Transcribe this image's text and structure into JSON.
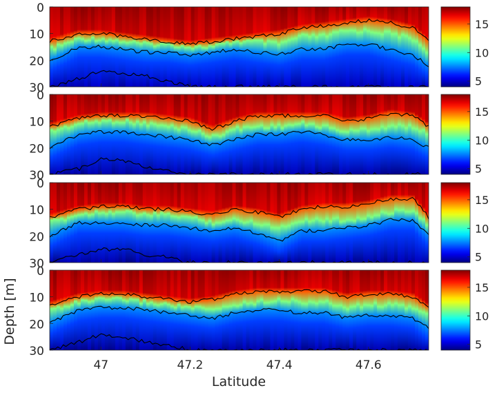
{
  "chart_data": {
    "type": "heatmap",
    "xlabel": "Latitude",
    "ylabel": "Depth [m]",
    "xlim": [
      46.885,
      47.735
    ],
    "ylim": [
      0,
      30
    ],
    "y_reversed": true,
    "x_ticks": [
      47,
      47.2,
      47.4,
      47.6
    ],
    "x_tick_labels": [
      "47",
      "47.2",
      "47.4",
      "47.6"
    ],
    "y_ticks": [
      0,
      10,
      20,
      30
    ],
    "y_tick_labels": [
      "0",
      "10",
      "20",
      "30"
    ],
    "colormap": "jet",
    "clim": [
      4,
      18
    ],
    "colorbar_ticks": [
      5,
      10,
      15
    ],
    "colorbar_tick_labels": [
      "5",
      "10",
      "15"
    ],
    "contour_color": "#000000",
    "latitude_nodes": [
      46.885,
      46.95,
      47.0,
      47.05,
      47.1,
      47.15,
      47.2,
      47.25,
      47.3,
      47.35,
      47.4,
      47.45,
      47.5,
      47.55,
      47.6,
      47.65,
      47.7,
      47.735
    ],
    "panels": [
      {
        "panel": 1,
        "surface_temperature": 17.5,
        "deep_temperature": 4.8,
        "thermocline_depth": [
          16,
          12,
          12,
          13,
          14,
          14,
          15,
          15,
          13,
          13,
          14,
          11,
          11,
          9,
          9,
          10,
          12,
          17
        ],
        "contour_upper_depth": [
          13,
          10,
          10,
          11,
          12,
          13,
          14,
          13,
          12,
          11,
          10,
          8,
          7,
          6,
          5,
          6,
          8,
          13
        ],
        "contour_lower_depth": [
          20,
          15,
          15,
          16,
          17,
          17,
          18,
          17,
          16,
          17,
          18,
          16,
          16,
          14,
          14,
          16,
          18,
          22
        ],
        "deep_contour_depth": [
          30,
          27,
          24,
          25,
          26,
          28,
          30,
          30,
          30,
          30,
          30,
          30,
          30,
          30,
          30,
          30,
          30,
          30
        ]
      },
      {
        "panel": 2,
        "surface_temperature": 17.5,
        "deep_temperature": 4.5,
        "thermocline_depth": [
          14,
          11,
          10,
          10,
          11,
          12,
          13,
          16,
          13,
          12,
          12,
          11,
          12,
          14,
          13,
          12,
          12,
          15
        ],
        "contour_upper_depth": [
          12,
          9,
          8,
          8,
          8,
          9,
          10,
          13,
          10,
          8,
          8,
          8,
          8,
          10,
          9,
          7,
          8,
          12
        ],
        "contour_lower_depth": [
          20,
          15,
          14,
          14,
          15,
          16,
          17,
          19,
          17,
          15,
          15,
          14,
          15,
          17,
          17,
          16,
          17,
          20
        ],
        "deep_contour_depth": [
          30,
          28,
          24,
          25,
          27,
          29,
          30,
          30,
          30,
          30,
          30,
          30,
          30,
          30,
          30,
          30,
          30,
          30
        ]
      },
      {
        "panel": 3,
        "surface_temperature": 17.5,
        "deep_temperature": 4.5,
        "thermocline_depth": [
          15,
          12,
          11,
          11,
          12,
          12,
          13,
          15,
          14,
          15,
          17,
          14,
          14,
          14,
          13,
          11,
          10,
          16
        ],
        "contour_upper_depth": [
          13,
          10,
          9,
          9,
          10,
          10,
          11,
          12,
          10,
          11,
          13,
          10,
          9,
          9,
          8,
          6,
          6,
          13
        ],
        "contour_lower_depth": [
          20,
          15,
          15,
          15,
          16,
          16,
          17,
          18,
          17,
          19,
          22,
          18,
          18,
          17,
          16,
          14,
          14,
          20
        ],
        "deep_contour_depth": [
          30,
          27,
          25,
          25,
          27,
          28,
          30,
          30,
          30,
          30,
          30,
          30,
          30,
          30,
          30,
          30,
          30,
          30
        ]
      },
      {
        "panel": 4,
        "surface_temperature": 17.5,
        "deep_temperature": 4.5,
        "thermocline_depth": [
          15,
          12,
          11,
          11,
          12,
          13,
          14,
          15,
          13,
          12,
          11,
          12,
          12,
          14,
          13,
          13,
          14,
          17
        ],
        "contour_upper_depth": [
          13,
          10,
          9,
          9,
          10,
          11,
          12,
          11,
          9,
          8,
          8,
          8,
          8,
          10,
          9,
          9,
          10,
          14
        ],
        "contour_lower_depth": [
          20,
          15,
          14,
          14,
          15,
          16,
          17,
          18,
          16,
          15,
          15,
          16,
          16,
          18,
          17,
          17,
          18,
          22
        ],
        "deep_contour_depth": [
          30,
          27,
          24,
          25,
          27,
          28,
          30,
          30,
          30,
          30,
          30,
          30,
          30,
          30,
          30,
          30,
          30,
          30
        ]
      }
    ]
  }
}
